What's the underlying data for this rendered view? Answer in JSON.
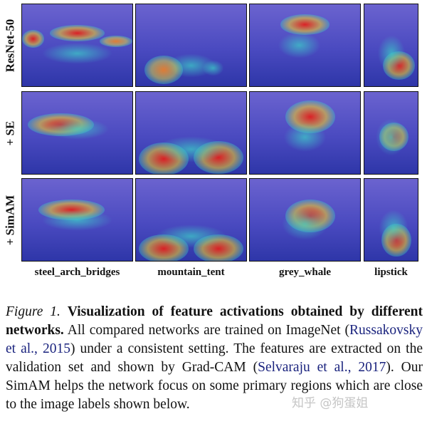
{
  "figure": {
    "rows": [
      "ResNet-50",
      "+ SE",
      "+ SimAM"
    ],
    "columns": [
      "steel_arch_bridges",
      "mountain_tent",
      "grey_whale",
      "lipstick"
    ],
    "heatmap_colormap": [
      "#2b2bb0",
      "#3ad0d0",
      "#f0e040",
      "#e02020"
    ]
  },
  "caption": {
    "figure_label": "Figure 1.",
    "bold_title": "Visualization of feature activations obtained by different networks.",
    "text_1": "All compared networks are trained on ImageNet (",
    "cite_1": "Russakovsky et al., 2015",
    "text_2": ") under a consistent setting. The features are extracted on the validation set and shown by Grad-CAM (",
    "cite_2": "Selvaraju et al., 2017",
    "text_3": "). Our SimAM helps the network focus on some primary regions which are close to the image labels shown below."
  },
  "watermark": "知乎 @狗蛋姐"
}
